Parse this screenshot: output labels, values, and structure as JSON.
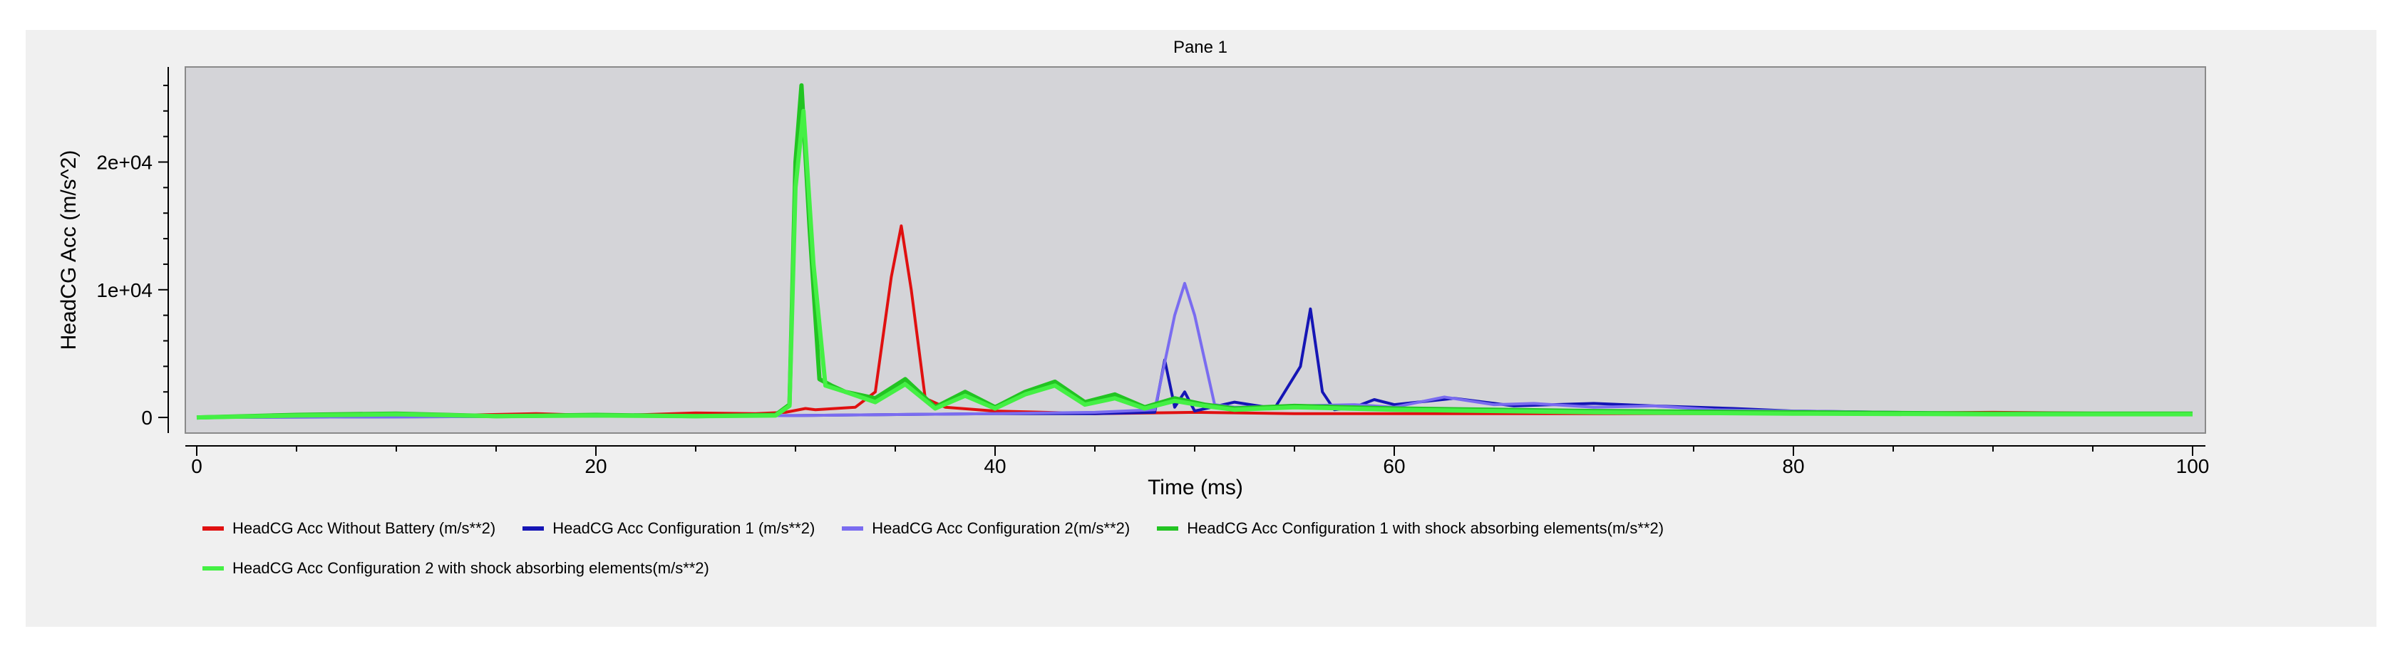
{
  "chart_data": {
    "type": "line",
    "title": "Pane 1",
    "xlabel": "Time (ms)",
    "ylabel": "HeadCG Acc (m/s^2)",
    "xlim": [
      0,
      100
    ],
    "ylim": [
      -1000,
      27000
    ],
    "x_ticks": [
      0,
      20,
      40,
      60,
      80,
      100
    ],
    "y_ticks": [
      0,
      10000,
      20000
    ],
    "y_tick_labels": [
      "0",
      "1e+04",
      "2e+04"
    ],
    "grid": false,
    "legend_position": "bottom",
    "series": [
      {
        "name": "HeadCG Acc Without Battery (m/s**2)",
        "color": "#e01010",
        "x": [
          0,
          3,
          6,
          10,
          14,
          17,
          19,
          21,
          25,
          28,
          29.5,
          30.5,
          31,
          32,
          33,
          34,
          34.8,
          35.3,
          35.8,
          36.5,
          37.5,
          40,
          45,
          50,
          55,
          60,
          70,
          80,
          90,
          98
        ],
        "y": [
          0,
          100,
          150,
          120,
          200,
          300,
          200,
          150,
          350,
          300,
          400,
          700,
          600,
          700,
          800,
          2000,
          11000,
          15000,
          10000,
          1500,
          800,
          500,
          300,
          400,
          300,
          300,
          300,
          300,
          400,
          300
        ]
      },
      {
        "name": "HeadCG Acc Configuration 1 (m/s**2)",
        "color": "#1515b5",
        "x": [
          0,
          10,
          20,
          30,
          40,
          45,
          48,
          48.5,
          49,
          49.5,
          50,
          52,
          54,
          55.3,
          55.8,
          56.4,
          57,
          58,
          59,
          60,
          63,
          66,
          70,
          73,
          77,
          80,
          85,
          90,
          95,
          100
        ],
        "y": [
          0,
          50,
          100,
          150,
          300,
          300,
          400,
          4500,
          800,
          2000,
          500,
          1200,
          700,
          4000,
          8500,
          2000,
          600,
          800,
          1400,
          1000,
          1500,
          900,
          1100,
          900,
          700,
          500,
          400,
          300,
          250,
          200
        ]
      },
      {
        "name": "HeadCG Acc Configuration 2(m/s**2)",
        "color": "#7a6cf0",
        "x": [
          0,
          10,
          20,
          30,
          40,
          45,
          48,
          49,
          49.5,
          50,
          51,
          52,
          55,
          58,
          60,
          62.5,
          65,
          67,
          70,
          73,
          76,
          80,
          85,
          90,
          95,
          100
        ],
        "y": [
          0,
          50,
          100,
          150,
          300,
          400,
          600,
          8000,
          10500,
          8000,
          1000,
          800,
          900,
          1000,
          800,
          1600,
          1000,
          1100,
          800,
          900,
          600,
          500,
          400,
          300,
          300,
          300
        ]
      },
      {
        "name": "HeadCG Acc Configuration 1 with shock absorbing elements(m/s**2)",
        "color": "#22c422",
        "x": [
          0,
          5,
          10,
          15,
          20,
          25,
          29,
          29.7,
          30,
          30.3,
          30.7,
          31.2,
          31.8,
          32.5,
          34,
          35.5,
          37,
          38.5,
          40,
          41.5,
          43,
          44.5,
          46,
          47.5,
          49,
          50.5,
          52,
          55,
          60,
          70,
          80,
          90,
          100
        ],
        "y": [
          0,
          200,
          300,
          100,
          200,
          100,
          200,
          1000,
          20000,
          26000,
          15000,
          3000,
          2500,
          2000,
          1500,
          3000,
          800,
          2000,
          800,
          2000,
          2800,
          1200,
          1800,
          800,
          1500,
          1000,
          700,
          900,
          700,
          500,
          400,
          300,
          300
        ]
      },
      {
        "name": "HeadCG Acc Configuration 2 with shock absorbing elements(m/s**2)",
        "color": "#44f044",
        "x": [
          0,
          5,
          10,
          15,
          20,
          25,
          29,
          29.7,
          30,
          30.4,
          30.9,
          31.5,
          32.5,
          34,
          35.5,
          37,
          38.5,
          40,
          41.5,
          43,
          44.5,
          46,
          47.5,
          49,
          50.5,
          52,
          55,
          60,
          70,
          80,
          90,
          100
        ],
        "y": [
          0,
          150,
          250,
          100,
          150,
          100,
          150,
          900,
          18000,
          24000,
          12000,
          2500,
          2000,
          1200,
          2600,
          700,
          1700,
          700,
          1800,
          2500,
          1000,
          1500,
          700,
          1300,
          900,
          600,
          800,
          600,
          400,
          300,
          250,
          250
        ]
      }
    ]
  }
}
